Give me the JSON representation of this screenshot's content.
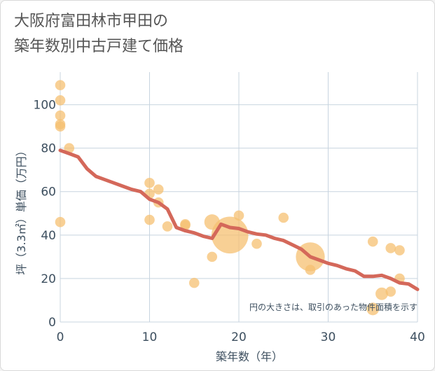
{
  "title_lines": [
    "大阪府富田林市甲田の",
    "築年数別中古戸建て価格"
  ],
  "note": "円の大きさは、取引のあった物件面積を示す",
  "colors": {
    "bubble": "#f5c071",
    "line": "#d4685a",
    "grid": "#c8d4df",
    "text": "#3d4f5f",
    "title": "#555555"
  },
  "chart_data": {
    "type": "scatter",
    "xlabel": "築年数（年）",
    "ylabel": "坪（3.3㎡）単価（万円）",
    "xlim": [
      0,
      40
    ],
    "ylim": [
      0,
      115
    ],
    "x_ticks": [
      0,
      10,
      20,
      30,
      40
    ],
    "y_ticks": [
      0,
      20,
      40,
      60,
      80,
      100
    ],
    "grid": true,
    "bubbles": [
      {
        "x": 0,
        "y": 109,
        "size": 1
      },
      {
        "x": 0,
        "y": 102,
        "size": 1
      },
      {
        "x": 0,
        "y": 95,
        "size": 1
      },
      {
        "x": 0,
        "y": 91,
        "size": 1
      },
      {
        "x": 0,
        "y": 90,
        "size": 1
      },
      {
        "x": 0,
        "y": 46,
        "size": 1
      },
      {
        "x": 1,
        "y": 80,
        "size": 1
      },
      {
        "x": 10,
        "y": 64,
        "size": 1
      },
      {
        "x": 10,
        "y": 59,
        "size": 1
      },
      {
        "x": 10,
        "y": 47,
        "size": 1
      },
      {
        "x": 11,
        "y": 61,
        "size": 1
      },
      {
        "x": 11,
        "y": 55,
        "size": 1
      },
      {
        "x": 12,
        "y": 44,
        "size": 1
      },
      {
        "x": 14,
        "y": 45,
        "size": 1
      },
      {
        "x": 14,
        "y": 44.5,
        "size": 1
      },
      {
        "x": 15,
        "y": 18,
        "size": 1
      },
      {
        "x": 17,
        "y": 46,
        "size": 2.3
      },
      {
        "x": 17,
        "y": 30,
        "size": 1
      },
      {
        "x": 19,
        "y": 40,
        "size": 13
      },
      {
        "x": 20,
        "y": 49,
        "size": 1
      },
      {
        "x": 22,
        "y": 36,
        "size": 1
      },
      {
        "x": 25,
        "y": 48,
        "size": 1
      },
      {
        "x": 28,
        "y": 30,
        "size": 8
      },
      {
        "x": 28,
        "y": 24,
        "size": 1
      },
      {
        "x": 35,
        "y": 37,
        "size": 1
      },
      {
        "x": 35,
        "y": 6,
        "size": 1.5
      },
      {
        "x": 36,
        "y": 13,
        "size": 1.5
      },
      {
        "x": 37,
        "y": 34,
        "size": 1
      },
      {
        "x": 37,
        "y": 14,
        "size": 1
      },
      {
        "x": 38,
        "y": 33,
        "size": 1
      },
      {
        "x": 38,
        "y": 20,
        "size": 1
      }
    ],
    "line": {
      "x": [
        0,
        1,
        2,
        3,
        4,
        5,
        6,
        7,
        8,
        9,
        10,
        11,
        12,
        13,
        14,
        15,
        16,
        17,
        18,
        19,
        20,
        21,
        22,
        23,
        24,
        25,
        26,
        27,
        28,
        29,
        30,
        31,
        32,
        33,
        34,
        35,
        36,
        37,
        38,
        39,
        40
      ],
      "y": [
        79,
        77.5,
        76,
        70.5,
        67,
        65.5,
        64,
        62.5,
        61,
        60,
        56.5,
        55,
        52,
        43.5,
        42,
        41,
        39.5,
        38.5,
        45,
        43.5,
        43,
        41.5,
        40.5,
        40,
        38.5,
        37.5,
        35.5,
        33.5,
        30,
        28.5,
        27,
        26,
        24.5,
        23.5,
        21,
        21,
        21.5,
        20,
        18,
        17.5,
        15
      ]
    }
  }
}
